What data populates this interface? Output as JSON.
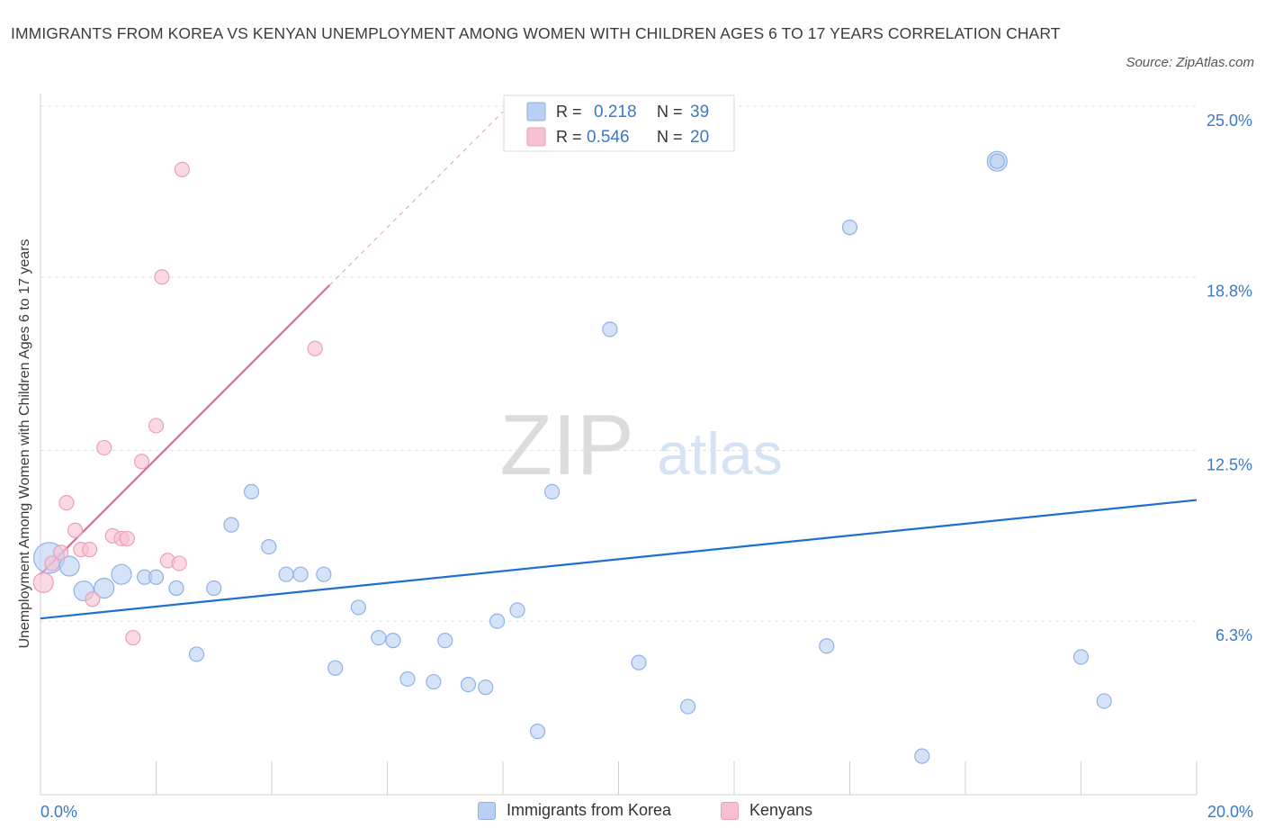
{
  "title": "IMMIGRANTS FROM KOREA VS KENYAN UNEMPLOYMENT AMONG WOMEN WITH CHILDREN AGES 6 TO 17 YEARS CORRELATION CHART",
  "source": "Source: ZipAtlas.com",
  "watermark": {
    "zip": "ZIP",
    "atlas": "atlas"
  },
  "legend": {
    "korea": {
      "r_label": "R =",
      "r_value": "0.218",
      "n_label": "N =",
      "n_value": "39"
    },
    "kenya": {
      "r_label": "R =",
      "r_value": "0.546",
      "n_label": "N =",
      "n_value": "20"
    }
  },
  "colors": {
    "korea_fill": "#b9d0f3",
    "korea_stroke": "#8fb2e6",
    "korea_line": "#1f6fd1",
    "kenya_fill": "#f6c0d0",
    "kenya_stroke": "#ee9fb8",
    "kenya_line": "#e0679a",
    "axis_label": "#3b78c9",
    "grid": "#e0e0e0"
  },
  "chart_data": {
    "type": "scatter",
    "title": "IMMIGRANTS FROM KOREA VS KENYAN UNEMPLOYMENT AMONG WOMEN WITH CHILDREN AGES 6 TO 17 YEARS CORRELATION CHART",
    "xlabel": "",
    "ylabel": "Unemployment Among Women with Children Ages 6 to 17 years",
    "xlim": [
      0,
      20
    ],
    "ylim": [
      0,
      25
    ],
    "x_tick_labels": [
      "0.0%",
      "20.0%"
    ],
    "y_ticks": [
      6.3,
      12.5,
      18.8,
      25.0
    ],
    "y_tick_labels": [
      "6.3%",
      "12.5%",
      "18.8%",
      "25.0%"
    ],
    "grid": "horizontal dashed",
    "legend_position": "bottom",
    "series": [
      {
        "name": "Immigrants from Korea",
        "points": [
          {
            "x": 0.15,
            "y": 8.6,
            "s": "xl"
          },
          {
            "x": 0.5,
            "y": 8.3,
            "s": "m"
          },
          {
            "x": 0.75,
            "y": 7.4,
            "s": "m"
          },
          {
            "x": 1.1,
            "y": 7.5,
            "s": "m"
          },
          {
            "x": 1.4,
            "y": 8.0,
            "s": "m"
          },
          {
            "x": 1.8,
            "y": 7.9,
            "s": "s"
          },
          {
            "x": 2.0,
            "y": 7.9,
            "s": "s"
          },
          {
            "x": 2.35,
            "y": 7.5,
            "s": "s"
          },
          {
            "x": 2.7,
            "y": 5.1,
            "s": "s"
          },
          {
            "x": 3.0,
            "y": 7.5,
            "s": "s"
          },
          {
            "x": 3.3,
            "y": 9.8,
            "s": "s"
          },
          {
            "x": 3.65,
            "y": 11.0,
            "s": "s"
          },
          {
            "x": 3.95,
            "y": 9.0,
            "s": "s"
          },
          {
            "x": 4.25,
            "y": 8.0,
            "s": "s"
          },
          {
            "x": 4.5,
            "y": 8.0,
            "s": "s"
          },
          {
            "x": 4.9,
            "y": 8.0,
            "s": "s"
          },
          {
            "x": 5.1,
            "y": 4.6,
            "s": "s"
          },
          {
            "x": 5.5,
            "y": 6.8,
            "s": "s"
          },
          {
            "x": 5.85,
            "y": 5.7,
            "s": "s"
          },
          {
            "x": 6.1,
            "y": 5.6,
            "s": "s"
          },
          {
            "x": 6.35,
            "y": 4.2,
            "s": "s"
          },
          {
            "x": 6.8,
            "y": 4.1,
            "s": "s"
          },
          {
            "x": 7.0,
            "y": 5.6,
            "s": "s"
          },
          {
            "x": 7.4,
            "y": 4.0,
            "s": "s"
          },
          {
            "x": 7.7,
            "y": 3.9,
            "s": "s"
          },
          {
            "x": 7.9,
            "y": 6.3,
            "s": "s"
          },
          {
            "x": 8.25,
            "y": 6.7,
            "s": "s"
          },
          {
            "x": 8.6,
            "y": 2.3,
            "s": "s"
          },
          {
            "x": 8.85,
            "y": 11.0,
            "s": "s"
          },
          {
            "x": 9.85,
            "y": 16.9,
            "s": "s"
          },
          {
            "x": 10.35,
            "y": 4.8,
            "s": "s"
          },
          {
            "x": 11.2,
            "y": 3.2,
            "s": "s"
          },
          {
            "x": 13.6,
            "y": 5.4,
            "s": "s"
          },
          {
            "x": 14.0,
            "y": 20.6,
            "s": "s"
          },
          {
            "x": 15.25,
            "y": 1.4,
            "s": "s"
          },
          {
            "x": 16.55,
            "y": 23.0,
            "s": "m"
          },
          {
            "x": 16.55,
            "y": 23.0,
            "s": "s"
          },
          {
            "x": 18.0,
            "y": 5.0,
            "s": "s"
          },
          {
            "x": 18.4,
            "y": 3.4,
            "s": "s"
          }
        ],
        "trend": {
          "x0": 0,
          "y0": 6.4,
          "x1": 20,
          "y1": 10.7
        }
      },
      {
        "name": "Kenyans",
        "points": [
          {
            "x": 0.05,
            "y": 7.7,
            "s": "m"
          },
          {
            "x": 0.2,
            "y": 8.4,
            "s": "s"
          },
          {
            "x": 0.35,
            "y": 8.8,
            "s": "s"
          },
          {
            "x": 0.45,
            "y": 10.6,
            "s": "s"
          },
          {
            "x": 0.6,
            "y": 9.6,
            "s": "s"
          },
          {
            "x": 0.7,
            "y": 8.9,
            "s": "s"
          },
          {
            "x": 0.85,
            "y": 8.9,
            "s": "s"
          },
          {
            "x": 0.9,
            "y": 7.1,
            "s": "s"
          },
          {
            "x": 1.1,
            "y": 12.6,
            "s": "s"
          },
          {
            "x": 1.25,
            "y": 9.4,
            "s": "s"
          },
          {
            "x": 1.4,
            "y": 9.3,
            "s": "s"
          },
          {
            "x": 1.5,
            "y": 9.3,
            "s": "s"
          },
          {
            "x": 1.6,
            "y": 5.7,
            "s": "s"
          },
          {
            "x": 1.75,
            "y": 12.1,
            "s": "s"
          },
          {
            "x": 2.0,
            "y": 13.4,
            "s": "s"
          },
          {
            "x": 2.1,
            "y": 18.8,
            "s": "s"
          },
          {
            "x": 2.2,
            "y": 8.5,
            "s": "s"
          },
          {
            "x": 2.4,
            "y": 8.4,
            "s": "s"
          },
          {
            "x": 2.45,
            "y": 22.7,
            "s": "s"
          },
          {
            "x": 4.75,
            "y": 16.2,
            "s": "s"
          }
        ],
        "trend": {
          "x0": 0,
          "y0": 8.0,
          "x1": 5.0,
          "y1": 18.5,
          "dash_to_x": 8.0
        }
      }
    ]
  }
}
